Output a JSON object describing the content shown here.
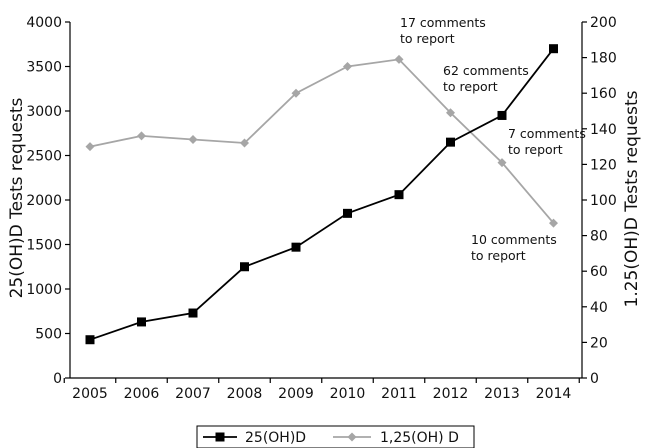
{
  "chart_data": {
    "type": "line",
    "x": [
      2005,
      2006,
      2007,
      2008,
      2009,
      2010,
      2011,
      2012,
      2013,
      2014
    ],
    "series": [
      {
        "name": "25(OH)D",
        "axis": "left",
        "color": "#000000",
        "marker": "square",
        "values": [
          430,
          630,
          730,
          1250,
          1470,
          1850,
          2060,
          2650,
          2950,
          3700
        ]
      },
      {
        "name": "1,25(OH) D",
        "axis": "right",
        "color": "#a6a6a6",
        "marker": "diamond",
        "values": [
          130,
          136,
          134,
          132,
          160,
          175,
          179,
          149,
          121,
          87
        ]
      }
    ],
    "xlabel": "",
    "ylabel_left": "25(OH)D Tests requests",
    "ylabel_right": "1.25(OH)D Tests requests",
    "ylim_left": [
      0,
      4000
    ],
    "yticks_left": [
      0,
      500,
      1000,
      1500,
      2000,
      2500,
      3000,
      3500,
      4000
    ],
    "ylim_right": [
      0,
      200
    ],
    "yticks_right": [
      0,
      20,
      40,
      60,
      80,
      100,
      120,
      140,
      160,
      180,
      200
    ],
    "grid": false,
    "legend": "bottom-center",
    "annotations": [
      {
        "lines": [
          "17 comments",
          "to report"
        ],
        "x": 2011
      },
      {
        "lines": [
          "62 comments",
          "to report"
        ],
        "x": 2012
      },
      {
        "lines": [
          "7 comments",
          "to report"
        ],
        "x": 2013
      },
      {
        "lines": [
          "10 comments",
          "to report"
        ],
        "x": 2014
      }
    ]
  }
}
